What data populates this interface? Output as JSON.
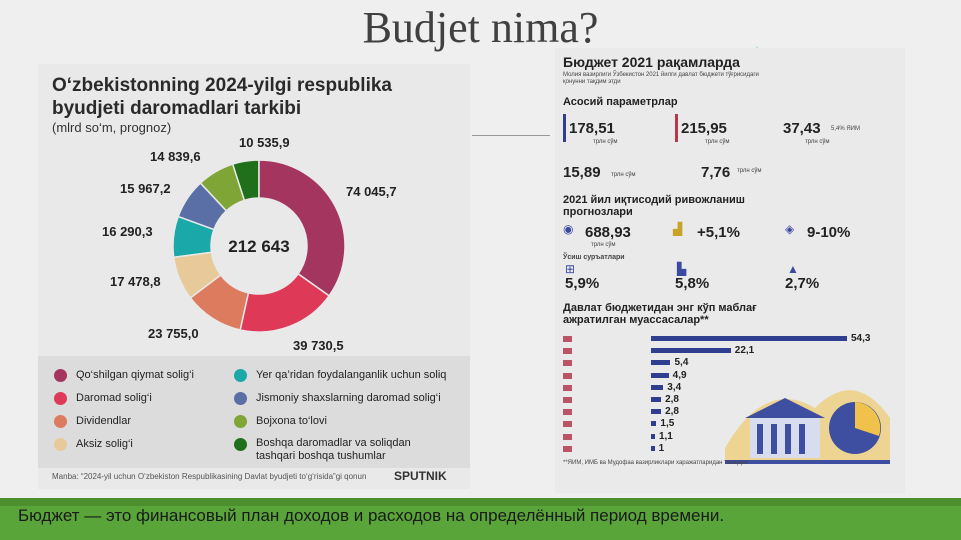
{
  "slide_title": "Budjet nima?",
  "left_infographic": {
    "title_line1": "O‘zbekistonning 2024-yilgi respublika",
    "title_line2": "byudjeti daromadlari tarkibi",
    "subtitle": "(mlrd so‘m, prognoz)",
    "total": "212 643",
    "chart_data": {
      "type": "pie",
      "title": "O‘zbekistonning 2024-yilgi respublika byudjeti daromadlari tarkibi",
      "categories": [
        "Qo‘shilgan qiymat solig‘i",
        "Daromad solig‘i",
        "Dividendlar",
        "Aksiz solig‘i",
        "Yer qa’ridan foydalanganlik uchun soliq",
        "Jismoniy shaxslarning daromad solig‘i",
        "Bojxona to‘lovi",
        "Boshqa daromadlar va soliqdan tashqari boshqa tushumlar"
      ],
      "values": [
        74045.7,
        39730.5,
        23755.0,
        17478.8,
        16290.3,
        15967.2,
        14839.6,
        10535.9
      ],
      "value_labels": [
        "74 045,7",
        "39 730,5",
        "23 755,0",
        "17 478,8",
        "16 290,3",
        "15 967,2",
        "14 839,6",
        "10 535,9"
      ],
      "colors": [
        "#a3355f",
        "#de3a57",
        "#dd7b5f",
        "#e8c99a",
        "#1aa9a8",
        "#5a6fa5",
        "#7ea535",
        "#206f1b"
      ]
    },
    "legend_left": [
      "Qo‘shilgan qiymat solig‘i",
      "Daromad solig‘i",
      "Dividendlar",
      "Aksiz solig‘i"
    ],
    "legend_right": [
      "Yer qa’ridan foydalanganlik uchun soliq",
      "Jismoniy shaxslarning daromad solig‘i",
      "Bojxona to‘lovi",
      "Boshqa daromadlar va soliqdan",
      "tashqari boshqa tushumlar"
    ],
    "source": "Manba: “2024-yil uchun O‘zbekiston Respublikasining Davlat byudjeti to‘g‘risida”gi qonun",
    "brand": "SPUTNIK"
  },
  "right_infographic": {
    "title": "Бюджет 2021 рақамларда",
    "subtitle_1": "Молия вазирлиги Ўзбекистон 2021 йилги давлат бюджети тўғрисидаги",
    "subtitle_2": "қонунни тақдим этди",
    "section1": "Асосий параметрлар",
    "revenue_value": "178,51",
    "expense_value": "215,95",
    "deficit_value": "37,43",
    "deficit_share": "5,4% ЯИМ",
    "unit": "трлн сўм",
    "debt_value": "15,89",
    "loans_value": "7,76",
    "section2_line1": "2021 йил иқтисодий ривожланиш",
    "section2_line2": "прогнозлари",
    "gdp_value": "688,93",
    "gdp_growth": "+5,1%",
    "inflation": "9-10%",
    "section3": "Ўсиш суръатлари",
    "growth1": "5,9%",
    "growth2": "5,8%",
    "growth3": "2,7%",
    "section4_line1": "Давлат бюджетидан энг кўп маблағ",
    "section4_line2": "ажратилган муассасалар**",
    "bar_chart_data": {
      "type": "bar",
      "values": [
        54.3,
        22.1,
        5.4,
        4.9,
        3.4,
        2.8,
        2.8,
        1.5,
        1.1,
        1
      ],
      "value_labels": [
        "54,3",
        "22,1",
        "5,4",
        "4,9",
        "3,4",
        "2,8",
        "2,8",
        "1,5",
        "1,1",
        "1"
      ]
    },
    "footnote": "**ЯИМ, ИМБ ва Мудофаа вазирликлари харажатларидан ташқари"
  },
  "caption": "Бюджет — это финансовый план доходов и расходов на определённый период времени.",
  "watermark": "sputnik"
}
